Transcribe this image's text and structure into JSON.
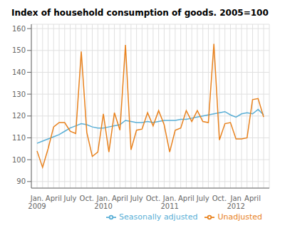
{
  "chart_data": {
    "type": "line",
    "title": "Index of household consumption of goods. 2005=100",
    "categories": [
      "Jan.\n2009",
      null,
      null,
      "April",
      null,
      null,
      "July",
      null,
      null,
      "Oct.",
      null,
      null,
      "Jan.\n2010",
      null,
      null,
      "April",
      null,
      null,
      "July",
      null,
      null,
      "Oct.",
      null,
      null,
      "Jan.\n2011",
      null,
      null,
      "April",
      null,
      null,
      "July",
      null,
      null,
      "Oct.",
      null,
      null,
      "Jan\n2012",
      null,
      null,
      "April",
      null,
      null
    ],
    "series": [
      {
        "name": "Seasonally adjusted",
        "color": "#5aafd6",
        "values": [
          107.5,
          108.5,
          109.5,
          110.5,
          111.5,
          113.0,
          114.5,
          115.5,
          116.5,
          116.0,
          115.0,
          114.5,
          114.5,
          115.0,
          115.5,
          116.0,
          118.0,
          117.5,
          117.0,
          117.0,
          117.5,
          117.0,
          117.5,
          118.0,
          118.0,
          118.0,
          118.5,
          118.5,
          119.0,
          119.5,
          120.0,
          120.5,
          121.0,
          121.5,
          122.0,
          120.5,
          119.5,
          121.0,
          121.5,
          121.0,
          123.0,
          120.5
        ]
      },
      {
        "name": "Unadjusted",
        "color": "#e8821e",
        "values": [
          104.0,
          96.5,
          105.0,
          115.0,
          117.0,
          117.0,
          113.0,
          112.0,
          149.5,
          112.5,
          101.5,
          103.5,
          121.0,
          103.5,
          121.5,
          113.5,
          152.5,
          104.5,
          113.5,
          114.0,
          121.5,
          115.5,
          122.5,
          116.0,
          103.5,
          113.5,
          114.5,
          122.5,
          117.5,
          122.5,
          117.5,
          117.0,
          153.0,
          109.0,
          116.5,
          117.0,
          109.5,
          109.5,
          110.0,
          127.5,
          128.0,
          119.5
        ]
      }
    ],
    "ylim": [
      87,
      162
    ],
    "yticks": [
      90,
      100,
      110,
      120,
      130,
      140,
      150,
      160
    ],
    "grid": true,
    "legend": "lower right"
  }
}
